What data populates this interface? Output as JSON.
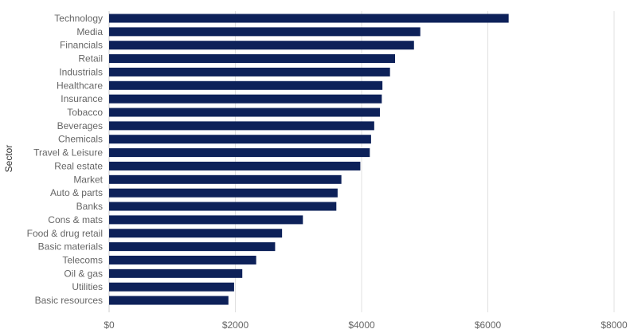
{
  "chart_data": {
    "type": "bar",
    "orientation": "horizontal",
    "categories": [
      "Technology",
      "Media",
      "Financials",
      "Retail",
      "Industrials",
      "Healthcare",
      "Insurance",
      "Tobacco",
      "Beverages",
      "Chemicals",
      "Travel & Leisure",
      "Real estate",
      "Market",
      "Auto & parts",
      "Banks",
      "Cons & mats",
      "Food & drug retail",
      "Basic materials",
      "Telecoms",
      "Oil & gas",
      "Utilities",
      "Basic resources"
    ],
    "values": [
      6330,
      4930,
      4830,
      4530,
      4450,
      4330,
      4320,
      4290,
      4200,
      4150,
      4130,
      3980,
      3680,
      3620,
      3600,
      3070,
      2740,
      2630,
      2330,
      2110,
      1980,
      1890
    ],
    "ylabel": "Sector",
    "xlabel": "",
    "xlim": [
      0,
      8000
    ],
    "x_ticks": [
      0,
      2000,
      4000,
      6000,
      8000
    ],
    "x_tick_labels": [
      "$0",
      "$2000",
      "$4000",
      "$6000",
      "$8000"
    ],
    "bar_color": "#0d2159",
    "grid_color": "#e0e0e0",
    "grid": true
  }
}
